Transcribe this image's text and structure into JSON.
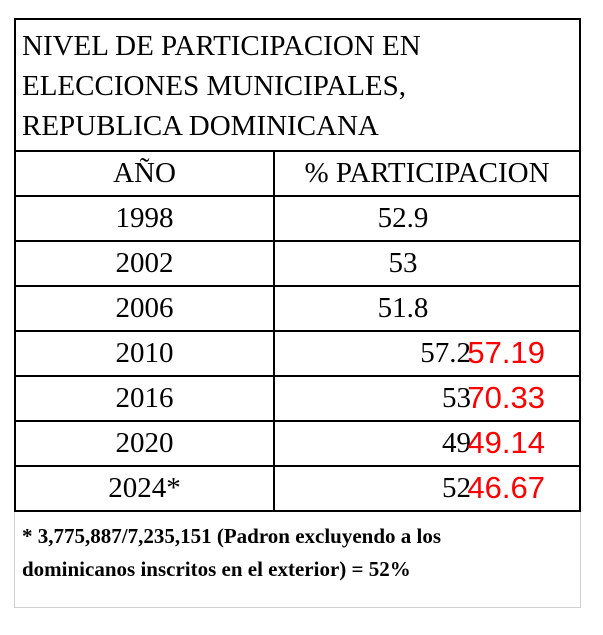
{
  "title_lines": [
    "NIVEL DE PARTICIPACION EN",
    "ELECCIONES MUNICIPALES,",
    "REPUBLICA DOMINICANA"
  ],
  "headers": {
    "year": "AÑO",
    "participation": "% PARTICIPACION"
  },
  "rows": [
    {
      "year": "1998",
      "value": "52.9",
      "alt": ""
    },
    {
      "year": "2002",
      "value": "53",
      "alt": ""
    },
    {
      "year": "2006",
      "value": "51.8",
      "alt": ""
    },
    {
      "year": "2010",
      "value": "57.2",
      "alt": "57.19"
    },
    {
      "year": "2016",
      "value": "53",
      "alt": "70.33"
    },
    {
      "year": "2020",
      "value": "49",
      "alt": "49.14"
    },
    {
      "year": "2024*",
      "value": "52",
      "alt": "46.67"
    }
  ],
  "footnote_lines": [
    "* 3,775,887/7,235,151 (Padron excluyendo a los",
    "dominicanos inscritos en el exterior) = 52%"
  ],
  "colors": {
    "alt_value": "#ff0000",
    "text": "#000000"
  }
}
